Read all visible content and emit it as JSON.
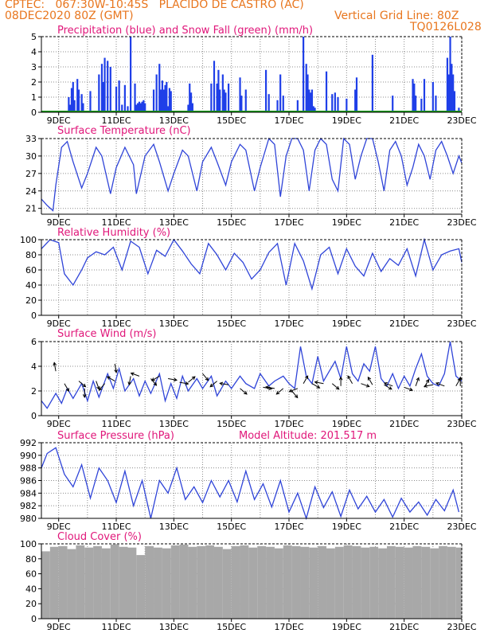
{
  "header": {
    "left1": "CPTEC:   067:30W-10:45S   PLACIDO DE CASTRO (AC)",
    "left2": "08DEC2020 80Z (GMT)",
    "right1": "Vertical Grid Line: 80Z",
    "right2": "TQ0126L028"
  },
  "colors": {
    "header": "#e8761e",
    "title": "#e0177a",
    "precip": "#1f3fe8",
    "snow": "#1a9a1a",
    "line": "#2f44d8",
    "cloud": "#a8a8a8",
    "grid": "#8c8c8c"
  },
  "chart_data": [
    {
      "type": "bar",
      "title": "Precipitation (blue) and Snow Fall (green) (mm/h)",
      "ylim": [
        0,
        5
      ],
      "yticks": [
        0,
        1,
        2,
        3,
        4,
        5
      ],
      "xtick_labels": [
        "9DEC",
        "11DEC",
        "13DEC",
        "15DEC",
        "17DEC",
        "19DEC",
        "21DEC",
        "23DEC"
      ],
      "x_domain_days": [
        8.4,
        23
      ],
      "series": [
        {
          "name": "Precipitation",
          "x_day": [
            9.35,
            9.4,
            9.45,
            9.5,
            9.55,
            9.65,
            9.7,
            9.8,
            9.85,
            10.1,
            10.4,
            10.5,
            10.55,
            10.6,
            10.7,
            10.8,
            11.0,
            11.1,
            11.2,
            11.3,
            11.4,
            11.5,
            11.65,
            11.7,
            11.75,
            11.8,
            11.85,
            11.9,
            11.95,
            12.0,
            12.3,
            12.4,
            12.5,
            12.55,
            12.6,
            12.65,
            12.7,
            12.75,
            12.8,
            12.85,
            12.9,
            13.5,
            13.55,
            13.6,
            13.65,
            14.3,
            14.4,
            14.5,
            14.55,
            14.6,
            14.7,
            14.75,
            14.8,
            14.9,
            15.3,
            15.35,
            15.5,
            16.2,
            16.3,
            16.6,
            16.7,
            16.8,
            17.3,
            17.5,
            17.6,
            17.65,
            17.7,
            17.75,
            17.8,
            17.85,
            17.9,
            18.3,
            18.5,
            18.6,
            18.7,
            19.0,
            19.3,
            19.35,
            19.9,
            20.6,
            21.3,
            21.35,
            21.4,
            21.6,
            21.7,
            22.0,
            22.1,
            22.5,
            22.55,
            22.6,
            22.65,
            22.7,
            22.75,
            22.9
          ],
          "values": [
            1,
            0.5,
            1.6,
            2,
            0.8,
            2.2,
            1.5,
            1.2,
            0.6,
            1.4,
            2.5,
            3.2,
            2,
            3.6,
            3.4,
            3,
            1.7,
            2.1,
            0.5,
            1.8,
            0.4,
            5,
            1.9,
            0.5,
            0.6,
            0.7,
            0.6,
            0.7,
            0.8,
            0.6,
            1.5,
            2.5,
            3.2,
            1.5,
            2.1,
            1.5,
            1.8,
            2,
            0.4,
            1.6,
            1.4,
            0.5,
            1.9,
            1.3,
            0.6,
            1.9,
            3.4,
            1.9,
            2.8,
            1.5,
            2.5,
            1.5,
            1.3,
            1.9,
            2.3,
            1.1,
            1.5,
            2.8,
            1.2,
            0.8,
            2.5,
            1.1,
            0.8,
            5,
            3.2,
            2.5,
            1.5,
            1.3,
            1.5,
            0.4,
            0.3,
            2.7,
            1.2,
            1.3,
            1,
            0.9,
            1.5,
            2.3,
            3.8,
            1.1,
            2.2,
            1.9,
            1.1,
            0.9,
            2.2,
            2,
            1.1,
            3.6,
            2.5,
            5,
            3.2,
            2.5,
            1.4,
            0.3
          ]
        },
        {
          "name": "Snow Fall",
          "x_day": [
            8.4,
            23
          ],
          "values": [
            0,
            0
          ]
        }
      ]
    },
    {
      "type": "line",
      "title": "Surface Temperature (nC)",
      "ylim": [
        20,
        33
      ],
      "yticks": [
        21,
        24,
        27,
        30,
        33
      ],
      "xtick_labels": [
        "9DEC",
        "11DEC",
        "13DEC",
        "15DEC",
        "17DEC",
        "19DEC",
        "21DEC",
        "23DEC"
      ],
      "x_domain_days": [
        8.4,
        23
      ],
      "series": [
        {
          "name": "Temperature",
          "x_day": [
            8.4,
            8.6,
            8.8,
            8.9,
            9.1,
            9.3,
            9.5,
            9.8,
            10.0,
            10.3,
            10.5,
            10.8,
            11.0,
            11.3,
            11.6,
            11.7,
            12.0,
            12.3,
            12.5,
            12.8,
            13.0,
            13.3,
            13.5,
            13.8,
            14.0,
            14.3,
            14.5,
            14.8,
            15.0,
            15.3,
            15.5,
            15.8,
            16.0,
            16.3,
            16.5,
            16.7,
            16.9,
            17.1,
            17.3,
            17.5,
            17.7,
            17.9,
            18.1,
            18.3,
            18.5,
            18.7,
            18.9,
            19.1,
            19.3,
            19.5,
            19.7,
            19.9,
            20.1,
            20.3,
            20.5,
            20.7,
            20.9,
            21.1,
            21.3,
            21.5,
            21.7,
            21.9,
            22.1,
            22.3,
            22.5,
            22.7,
            22.9,
            23.0
          ],
          "values": [
            22.6,
            21.5,
            20.6,
            25,
            31.5,
            32.5,
            29,
            24.5,
            27,
            31.5,
            30,
            23.5,
            28,
            31.5,
            28.5,
            23.5,
            30,
            32,
            29,
            24,
            27,
            31,
            30,
            24,
            29,
            31.5,
            29,
            25,
            29,
            32,
            31,
            24,
            28,
            33,
            32,
            23,
            30,
            33,
            33,
            31,
            24,
            31,
            33,
            32,
            26,
            24,
            33,
            32,
            26,
            30,
            33,
            33,
            29,
            24,
            31,
            32.5,
            30,
            25,
            28,
            32,
            30,
            26,
            31,
            32.5,
            30,
            27,
            30,
            28.8
          ]
        }
      ]
    },
    {
      "type": "line",
      "title": "Relative Humidity (%)",
      "ylim": [
        0,
        100
      ],
      "yticks": [
        0,
        20,
        40,
        60,
        80,
        100
      ],
      "xtick_labels": [
        "9DEC",
        "11DEC",
        "13DEC",
        "15DEC",
        "17DEC",
        "19DEC",
        "21DEC",
        "23DEC"
      ],
      "x_domain_days": [
        8.4,
        23
      ],
      "series": [
        {
          "name": "Relative Humidity",
          "x_day": [
            8.4,
            8.7,
            9.0,
            9.2,
            9.5,
            9.8,
            10.0,
            10.3,
            10.6,
            10.9,
            11.2,
            11.5,
            11.8,
            12.1,
            12.4,
            12.7,
            13.0,
            13.3,
            13.6,
            13.9,
            14.2,
            14.5,
            14.8,
            15.1,
            15.4,
            15.7,
            16.0,
            16.3,
            16.6,
            16.9,
            17.2,
            17.5,
            17.8,
            18.1,
            18.4,
            18.7,
            19.0,
            19.3,
            19.6,
            19.9,
            20.2,
            20.5,
            20.8,
            21.1,
            21.4,
            21.7,
            22.0,
            22.3,
            22.6,
            22.9,
            23.0
          ],
          "values": [
            88,
            100,
            96,
            55,
            40,
            60,
            76,
            84,
            80,
            90,
            60,
            98,
            90,
            55,
            86,
            78,
            100,
            85,
            68,
            55,
            95,
            80,
            60,
            82,
            70,
            48,
            60,
            83,
            95,
            40,
            95,
            72,
            35,
            80,
            90,
            55,
            88,
            65,
            52,
            82,
            58,
            75,
            66,
            88,
            52,
            100,
            60,
            80,
            85,
            88,
            70
          ]
        }
      ]
    },
    {
      "type": "line",
      "title": "Surface Wind (m/s)",
      "ylim": [
        0,
        6
      ],
      "yticks": [
        0,
        2,
        4,
        6
      ],
      "xtick_labels": [
        "9DEC",
        "11DEC",
        "13DEC",
        "15DEC",
        "17DEC",
        "19DEC",
        "21DEC",
        "23DEC"
      ],
      "x_domain_days": [
        8.4,
        23
      ],
      "series": [
        {
          "name": "Wind speed",
          "x_day": [
            8.4,
            8.6,
            8.9,
            9.1,
            9.3,
            9.5,
            9.8,
            10.0,
            10.2,
            10.4,
            10.7,
            10.9,
            11.1,
            11.3,
            11.6,
            11.8,
            12.0,
            12.2,
            12.5,
            12.7,
            12.9,
            13.1,
            13.3,
            13.5,
            13.8,
            14.0,
            14.3,
            14.5,
            14.8,
            15.0,
            15.3,
            15.5,
            15.8,
            16.0,
            16.3,
            16.5,
            16.8,
            17.0,
            17.2,
            17.4,
            17.6,
            17.8,
            18.0,
            18.2,
            18.4,
            18.6,
            18.8,
            19.0,
            19.2,
            19.4,
            19.6,
            19.8,
            20.0,
            20.2,
            20.4,
            20.6,
            20.8,
            21.0,
            21.2,
            21.4,
            21.6,
            21.8,
            22.0,
            22.2,
            22.4,
            22.6,
            22.8,
            23.0
          ],
          "values": [
            1.2,
            0.6,
            1.8,
            1,
            2.2,
            1.4,
            2.6,
            1.2,
            2.8,
            1.5,
            3.4,
            2.2,
            3.8,
            2,
            3,
            1.6,
            2.8,
            1.8,
            3.4,
            1.2,
            2.6,
            1.4,
            3.2,
            2,
            3,
            2.2,
            3.2,
            1.6,
            2.8,
            2.2,
            3.2,
            2.6,
            2.2,
            3.4,
            2.4,
            2.8,
            3.2,
            2.6,
            2.2,
            5.6,
            3.2,
            2.6,
            4.8,
            2.8,
            3.6,
            4.4,
            3,
            5.6,
            3.4,
            2.8,
            4.2,
            3.6,
            5.6,
            3,
            2.4,
            3.4,
            2.2,
            3.2,
            2.4,
            3.8,
            5,
            3.2,
            2.6,
            2.4,
            3.4,
            6,
            3.2,
            2.8
          ]
        }
      ]
    },
    {
      "type": "line",
      "title": "Surface Pressure (hPa)",
      "annotation": "Model Altitude: 201.517 m",
      "ylim": [
        980,
        992
      ],
      "yticks": [
        980,
        982,
        984,
        986,
        988,
        990,
        992
      ],
      "xtick_labels": [
        "9DEC",
        "11DEC",
        "13DEC",
        "15DEC",
        "17DEC",
        "19DEC",
        "21DEC",
        "23DEC"
      ],
      "x_domain_days": [
        8.4,
        23
      ],
      "series": [
        {
          "name": "Pressure",
          "x_day": [
            8.4,
            8.6,
            8.9,
            9.2,
            9.5,
            9.8,
            10.1,
            10.4,
            10.7,
            11.0,
            11.3,
            11.6,
            11.9,
            12.2,
            12.5,
            12.8,
            13.1,
            13.4,
            13.7,
            14.0,
            14.3,
            14.6,
            14.9,
            15.2,
            15.5,
            15.8,
            16.1,
            16.4,
            16.7,
            17.0,
            17.3,
            17.6,
            17.9,
            18.2,
            18.5,
            18.8,
            19.1,
            19.4,
            19.7,
            20.0,
            20.3,
            20.6,
            20.9,
            21.2,
            21.5,
            21.8,
            22.1,
            22.4,
            22.7,
            22.9
          ],
          "values": [
            988,
            990.3,
            991.2,
            987,
            985,
            988.5,
            983.2,
            988,
            986,
            982.5,
            987.5,
            982,
            986,
            980,
            986,
            984,
            988,
            983,
            985,
            982.5,
            986,
            983.4,
            986,
            982.6,
            987.5,
            983,
            985.5,
            981.8,
            986,
            981,
            984,
            980,
            985,
            981.7,
            984.2,
            980.3,
            984.5,
            981.5,
            983.5,
            981,
            983,
            980.2,
            983.2,
            981,
            982.6,
            980.5,
            983,
            981.2,
            984.5,
            981
          ]
        }
      ]
    },
    {
      "type": "bar",
      "title": "Cloud Cover (%)",
      "ylim": [
        0,
        100
      ],
      "yticks": [
        0,
        20,
        40,
        60,
        80,
        100
      ],
      "xtick_labels": [
        "9DEC",
        "11DEC",
        "13DEC",
        "15DEC",
        "17DEC",
        "19DEC",
        "21DEC",
        "23DEC"
      ],
      "x_domain_days": [
        8.4,
        23
      ],
      "series": [
        {
          "name": "Cloud Cover",
          "x_day": [
            8.4,
            8.7,
            9.0,
            9.3,
            9.6,
            9.9,
            10.2,
            10.5,
            10.8,
            11.1,
            11.4,
            11.7,
            12.0,
            12.3,
            12.6,
            12.9,
            13.2,
            13.5,
            13.8,
            14.1,
            14.4,
            14.7,
            15.0,
            15.3,
            15.6,
            15.9,
            16.2,
            16.5,
            16.8,
            17.1,
            17.4,
            17.7,
            18.0,
            18.3,
            18.6,
            18.9,
            19.2,
            19.5,
            19.8,
            20.1,
            20.4,
            20.7,
            21.0,
            21.3,
            21.6,
            21.9,
            22.2,
            22.5,
            22.8,
            23.0
          ],
          "values": [
            90,
            96,
            97,
            93,
            98,
            95,
            97,
            94,
            99,
            96,
            95,
            85,
            97,
            95,
            94,
            98,
            99,
            96,
            97,
            98,
            96,
            93,
            97,
            98,
            95,
            97,
            96,
            94,
            98,
            97,
            96,
            95,
            97,
            94,
            96,
            98,
            97,
            95,
            96,
            94,
            97,
            96,
            95,
            97,
            96,
            94,
            97,
            96,
            95,
            97
          ]
        }
      ]
    }
  ]
}
